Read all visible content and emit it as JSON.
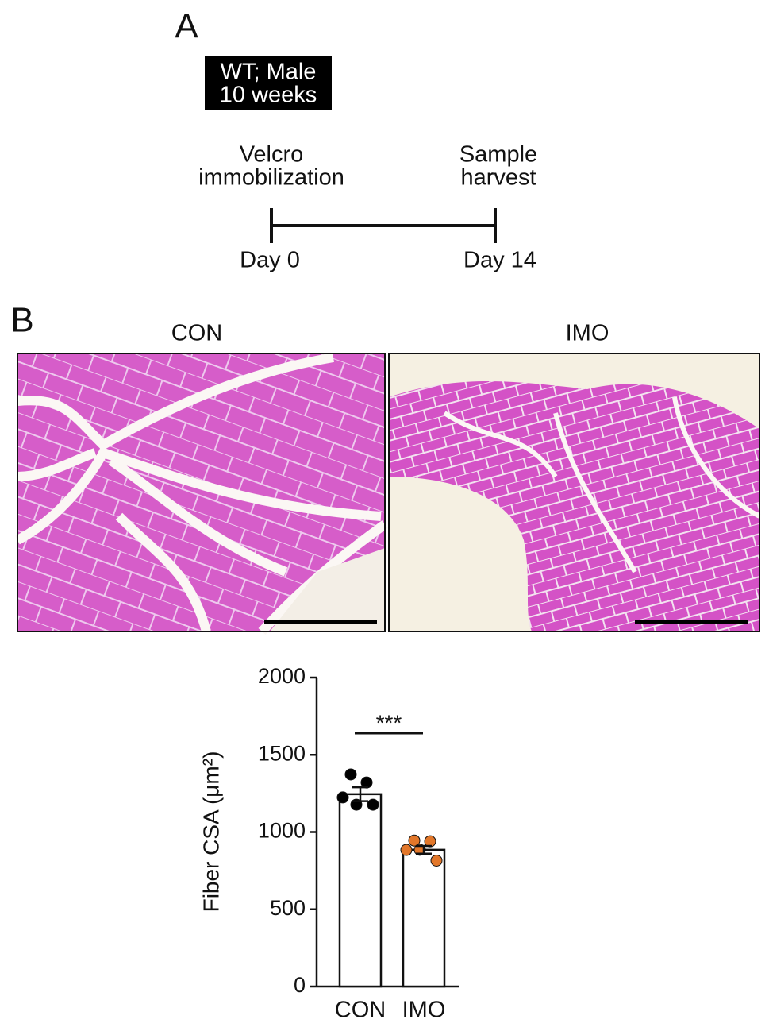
{
  "panel_a": {
    "label": "A",
    "box": [
      "WT; Male",
      "10 weeks"
    ],
    "start": [
      "Velcro",
      "immobilization"
    ],
    "end": [
      "Sample",
      "harvest"
    ],
    "start_day": "Day 0",
    "end_day": "Day 14"
  },
  "panel_b": {
    "label": "B",
    "images": [
      "CON",
      "IMO"
    ]
  },
  "chart_data": {
    "type": "bar",
    "ylabel": "Fiber CSA (μm²)",
    "categories": [
      "CON",
      "IMO"
    ],
    "values": [
      1245,
      885
    ],
    "errors": [
      45,
      25
    ],
    "points": [
      [
        1373,
        1321,
        1224,
        1177,
        1177
      ],
      [
        945,
        940,
        884,
        885,
        815
      ]
    ],
    "point_colors": [
      "#000000",
      "#e2772a"
    ],
    "color": "#ffffff",
    "ylim": [
      0,
      2000
    ],
    "yticks": [
      0,
      500,
      1000,
      1500,
      2000
    ],
    "annotation": "***"
  }
}
